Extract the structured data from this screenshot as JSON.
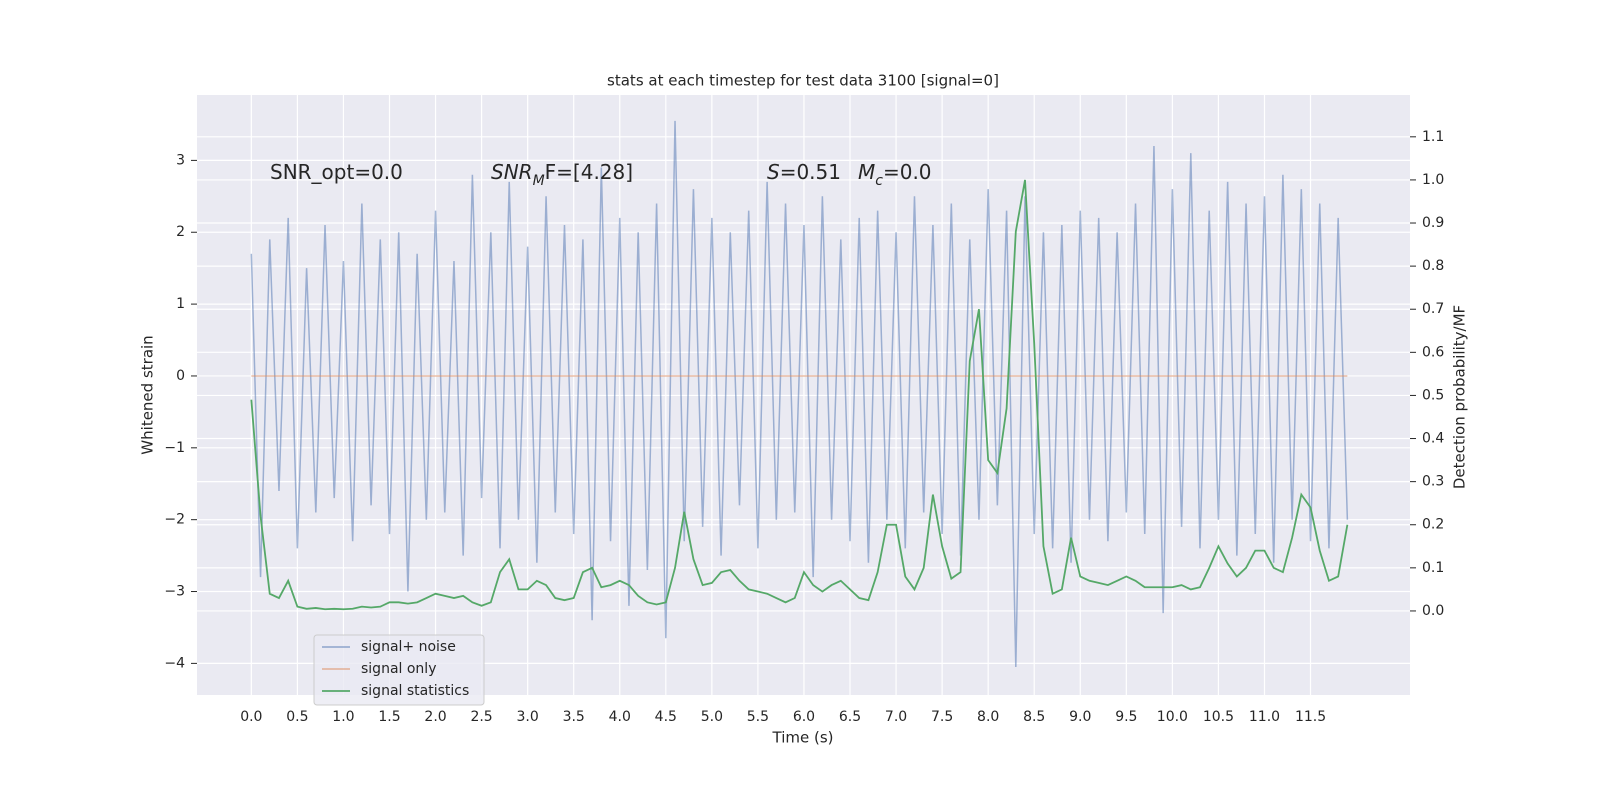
{
  "chart_data": {
    "type": "line",
    "title": "stats at each timestep for test data 3100 [signal=0]",
    "xlabel": "Time (s)",
    "ylabel": "Whitened strain",
    "y2label": "Detection probability/MF",
    "annotations": [
      [
        {
          "text": "SNR_opt=0.0",
          "style": "normal"
        }
      ],
      [
        {
          "text": "SNR",
          "style": "italic"
        },
        {
          "text": "M",
          "style": "sub"
        },
        {
          "text": "F=[4.28]",
          "style": "normal"
        }
      ],
      [
        {
          "text": "S",
          "style": "italic"
        },
        {
          "text": "=0.51",
          "style": "normal"
        }
      ],
      [
        {
          "text": "M",
          "style": "italic"
        },
        {
          "text": "c",
          "style": "sub"
        },
        {
          "text": "=0.0",
          "style": "normal"
        }
      ]
    ],
    "x": [
      0.0,
      0.1,
      0.2,
      0.3,
      0.4,
      0.5,
      0.6,
      0.7,
      0.8,
      0.9,
      1.0,
      1.1,
      1.2,
      1.3,
      1.4,
      1.5,
      1.6,
      1.7,
      1.8,
      1.9,
      2.0,
      2.1,
      2.2,
      2.3,
      2.4,
      2.5,
      2.6,
      2.7,
      2.8,
      2.9,
      3.0,
      3.1,
      3.2,
      3.3,
      3.4,
      3.5,
      3.6,
      3.7,
      3.8,
      3.9,
      4.0,
      4.1,
      4.2,
      4.3,
      4.4,
      4.5,
      4.6,
      4.7,
      4.8,
      4.9,
      5.0,
      5.1,
      5.2,
      5.3,
      5.4,
      5.5,
      5.6,
      5.7,
      5.8,
      5.9,
      6.0,
      6.1,
      6.2,
      6.3,
      6.4,
      6.5,
      6.6,
      6.7,
      6.8,
      6.9,
      7.0,
      7.1,
      7.2,
      7.3,
      7.4,
      7.5,
      7.6,
      7.7,
      7.8,
      7.9,
      8.0,
      8.1,
      8.2,
      8.3,
      8.4,
      8.5,
      8.6,
      8.7,
      8.8,
      8.9,
      9.0,
      9.1,
      9.2,
      9.3,
      9.4,
      9.5,
      9.6,
      9.7,
      9.8,
      9.9,
      10.0,
      10.1,
      10.2,
      10.3,
      10.4,
      10.5,
      10.6,
      10.7,
      10.8,
      10.9,
      11.0,
      11.1,
      11.2,
      11.3,
      11.4,
      11.5,
      11.6,
      11.7,
      11.8,
      11.9
    ],
    "series": [
      {
        "name": "signal+ noise",
        "color": "#4c72b0",
        "opacity": 0.5,
        "axis": "y",
        "values": [
          1.7,
          -2.8,
          1.9,
          -1.6,
          2.2,
          -2.4,
          1.5,
          -1.9,
          2.1,
          -1.7,
          1.6,
          -2.3,
          2.4,
          -1.8,
          1.9,
          -2.2,
          2.0,
          -3.0,
          1.7,
          -2.0,
          2.3,
          -1.9,
          1.6,
          -2.5,
          2.8,
          -1.7,
          2.0,
          -2.4,
          2.7,
          -2.0,
          1.8,
          -2.6,
          2.5,
          -1.9,
          2.1,
          -2.2,
          1.9,
          -3.4,
          2.9,
          -2.3,
          2.2,
          -3.2,
          2.0,
          -2.7,
          2.4,
          -3.65,
          3.55,
          -2.3,
          2.6,
          -2.1,
          2.2,
          -2.5,
          2.0,
          -1.8,
          2.3,
          -2.4,
          2.7,
          -2.0,
          2.4,
          -1.9,
          2.1,
          -2.8,
          2.5,
          -2.0,
          1.9,
          -2.3,
          2.2,
          -2.6,
          2.3,
          -2.0,
          2.0,
          -2.4,
          2.5,
          -1.9,
          2.1,
          -2.2,
          2.4,
          -2.5,
          1.9,
          -2.0,
          2.6,
          -1.8,
          2.3,
          -4.05,
          2.5,
          -2.2,
          2.0,
          -2.4,
          2.1,
          -2.6,
          2.3,
          -2.0,
          2.2,
          -2.3,
          2.0,
          -1.9,
          2.4,
          -2.2,
          3.2,
          -3.3,
          2.6,
          -2.1,
          3.1,
          -2.4,
          2.3,
          -2.0,
          2.7,
          -2.5,
          2.4,
          -2.2,
          2.5,
          -2.6,
          2.8,
          -2.0,
          2.6,
          -2.3,
          2.4,
          -2.4,
          2.2,
          -2.0
        ]
      },
      {
        "name": "signal only",
        "color": "#dd8452",
        "opacity": 0.5,
        "axis": "y",
        "x": [
          0.0,
          11.9
        ],
        "values": [
          0,
          0
        ]
      },
      {
        "name": "signal statistics",
        "color": "#55a868",
        "opacity": 1,
        "axis": "y2",
        "values": [
          0.49,
          0.22,
          0.04,
          0.03,
          0.07,
          0.01,
          0.005,
          0.007,
          0.004,
          0.005,
          0.004,
          0.005,
          0.01,
          0.008,
          0.01,
          0.02,
          0.02,
          0.017,
          0.02,
          0.03,
          0.04,
          0.035,
          0.03,
          0.035,
          0.02,
          0.012,
          0.02,
          0.09,
          0.12,
          0.05,
          0.05,
          0.07,
          0.06,
          0.03,
          0.025,
          0.03,
          0.09,
          0.1,
          0.055,
          0.06,
          0.07,
          0.06,
          0.035,
          0.02,
          0.015,
          0.02,
          0.1,
          0.23,
          0.12,
          0.06,
          0.065,
          0.09,
          0.095,
          0.07,
          0.05,
          0.045,
          0.04,
          0.03,
          0.02,
          0.03,
          0.09,
          0.06,
          0.045,
          0.06,
          0.07,
          0.05,
          0.03,
          0.025,
          0.09,
          0.2,
          0.2,
          0.08,
          0.05,
          0.1,
          0.27,
          0.15,
          0.075,
          0.09,
          0.58,
          0.7,
          0.35,
          0.32,
          0.47,
          0.88,
          1.0,
          0.62,
          0.15,
          0.04,
          0.05,
          0.17,
          0.08,
          0.07,
          0.065,
          0.06,
          0.07,
          0.08,
          0.07,
          0.055,
          0.055,
          0.055,
          0.055,
          0.06,
          0.05,
          0.055,
          0.1,
          0.15,
          0.11,
          0.08,
          0.1,
          0.14,
          0.14,
          0.1,
          0.09,
          0.17,
          0.27,
          0.24,
          0.14,
          0.07,
          0.08,
          0.2
        ]
      }
    ],
    "xlim": [
      -0.59,
      12.58
    ],
    "ylim": [
      -4.44,
      3.91
    ],
    "y2lim": [
      -0.195,
      1.197
    ],
    "xticks": [
      {
        "value": 0,
        "label": "0.0"
      },
      {
        "value": 0.5,
        "label": "0.5"
      },
      {
        "value": 1,
        "label": "1.0"
      },
      {
        "value": 1.5,
        "label": "1.5"
      },
      {
        "value": 2,
        "label": "2.0"
      },
      {
        "value": 2.5,
        "label": "2.5"
      },
      {
        "value": 3,
        "label": "3.0"
      },
      {
        "value": 3.5,
        "label": "3.5"
      },
      {
        "value": 4,
        "label": "4.0"
      },
      {
        "value": 4.5,
        "label": "4.5"
      },
      {
        "value": 5,
        "label": "5.0"
      },
      {
        "value": 5.5,
        "label": "5.5"
      },
      {
        "value": 6,
        "label": "6.0"
      },
      {
        "value": 6.5,
        "label": "6.5"
      },
      {
        "value": 7,
        "label": "7.0"
      },
      {
        "value": 7.5,
        "label": "7.5"
      },
      {
        "value": 8,
        "label": "8.0"
      },
      {
        "value": 8.5,
        "label": "8.5"
      },
      {
        "value": 9,
        "label": "9.0"
      },
      {
        "value": 9.5,
        "label": "9.5"
      },
      {
        "value": 10,
        "label": "10.0"
      },
      {
        "value": 10.5,
        "label": "10.5"
      },
      {
        "value": 11,
        "label": "11.0"
      },
      {
        "value": 11.5,
        "label": "11.5"
      }
    ],
    "yticks": [
      {
        "value": -4,
        "label": "−4"
      },
      {
        "value": -3,
        "label": "−3"
      },
      {
        "value": -2,
        "label": "−2"
      },
      {
        "value": -1,
        "label": "−1"
      },
      0,
      1,
      2,
      3
    ],
    "y2ticks": [
      {
        "value": 0,
        "label": "0.0"
      },
      {
        "value": 0.1,
        "label": "0.1"
      },
      {
        "value": 0.2,
        "label": "0.2"
      },
      {
        "value": 0.3,
        "label": "0.3"
      },
      {
        "value": 0.4,
        "label": "0.4"
      },
      {
        "value": 0.5,
        "label": "0.5"
      },
      {
        "value": 0.6,
        "label": "0.6"
      },
      {
        "value": 0.7,
        "label": "0.7"
      },
      {
        "value": 0.8,
        "label": "0.8"
      },
      {
        "value": 0.9,
        "label": "0.9"
      },
      {
        "value": 1,
        "label": "1.0"
      },
      {
        "value": 1.1,
        "label": "1.1"
      }
    ],
    "grid": true,
    "legend": "lower left"
  }
}
